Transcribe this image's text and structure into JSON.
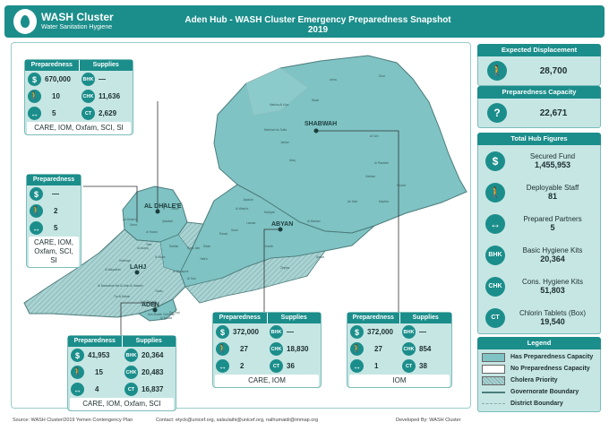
{
  "header": {
    "logo_title": "WASH Cluster",
    "logo_subtitle": "Water Sanitation Hygiene",
    "title": "Aden Hub - WASH Cluster Emergency Preparedness Snapshot 2019"
  },
  "map_labels": {
    "shabwah": "SHABWAH",
    "al_dhale": "AL DHALE'E",
    "abyan": "ABYAN",
    "lahj": "LAHJ",
    "aden": "ADEN"
  },
  "map_districts": [
    "Arma",
    "Dhar",
    "Markha Al Ulya",
    "Nisab",
    "Merkhah As Sufla",
    "Ataq",
    "Jardan",
    "Rudum",
    "Mayfa'a",
    "Habban",
    "Ar Rawdah",
    "As Said",
    "Al Talh",
    "Ahwar",
    "Lawdar",
    "Mudiyah",
    "Al Mahfad",
    "Jayshan",
    "Sarar",
    "Khanfir",
    "Zinjibar",
    "Al Wade'a",
    "Rasad",
    "Sibah",
    "Al Musaymir",
    "Tuban",
    "Al Madaribah Wa Al Arah",
    "Dar Sad",
    "Al Mualla",
    "Ash Shaikh Outhman",
    "Ash Shu'ayb",
    "Al Husha",
    "Qatabah",
    "Juban",
    "Damt",
    "Ad Dhale'e",
    "Al Azariq",
    "Al Hawtah",
    "Tur Al Bahah",
    "Al Maqatirah",
    "Halimayn",
    "Al Milah",
    "Yafa'a",
    "Al Had",
    "Radfan",
    "Habil Jabr",
    "Yahr"
  ],
  "cards": {
    "al_dhalee": {
      "head_preparedness": "Preparedness",
      "head_supplies": "Supplies",
      "displacement": "670,000",
      "staff": "10",
      "partners": "5",
      "bhk": "—",
      "chk": "11,636",
      "ct": "2,629",
      "partners_list": "CARE, IOM, Oxfam, SCI, SI"
    },
    "lahj": {
      "head_preparedness": "Preparedness",
      "displacement": "—",
      "staff": "2",
      "partners": "5",
      "partners_list": "CARE, IOM, Oxfam, SCI, SI"
    },
    "aden": {
      "head_preparedness": "Preparedness",
      "head_supplies": "Supplies",
      "displacement": "41,953",
      "staff": "15",
      "partners": "4",
      "bhk": "20,364",
      "chk": "20,483",
      "ct": "16,837",
      "partners_list": "CARE, IOM, Oxfam, SCI"
    },
    "abyan": {
      "head_preparedness": "Preparedness",
      "head_supplies": "Supplies",
      "displacement": "372,000",
      "staff": "27",
      "partners": "2",
      "bhk": "—",
      "chk": "18,830",
      "ct": "36",
      "partners_list": "CARE, IOM"
    },
    "shabwah": {
      "head_preparedness": "Preparedness",
      "head_supplies": "Supplies",
      "displacement": "372,000",
      "staff": "27",
      "partners": "1",
      "bhk": "—",
      "chk": "854",
      "ct": "38",
      "partners_list": "IOM"
    }
  },
  "icons": {
    "bhk": "BHK",
    "chk": "CHK",
    "ct": "CT",
    "dollar": "$",
    "question": "?"
  },
  "side": {
    "expected_displacement": {
      "title": "Expected Displacement",
      "value": "28,700"
    },
    "preparedness_capacity": {
      "title": "Preparedness Capacity",
      "value": "22,671"
    },
    "total_hub": {
      "title": "Total Hub Figures",
      "items": [
        {
          "label": "Secured Fund",
          "value": "1,455,953"
        },
        {
          "label": "Deployable Staff",
          "value": "81"
        },
        {
          "label": "Prepared Partners",
          "value": "5"
        },
        {
          "label": "Basic Hygiene Kits",
          "value": "20,364"
        },
        {
          "label": "Cons. Hygiene Kits",
          "value": "51,803"
        },
        {
          "label": "Chlorin Tablets (Box)",
          "value": "19,540"
        }
      ]
    },
    "legend": {
      "title": "Legend",
      "items": [
        "Has Preparedness Capacity",
        "No Preparedness Capacity",
        "Cholera Priority",
        "Governorate Boundary",
        "District Boundary"
      ]
    }
  },
  "colors": {
    "accent": "#1b8e8b",
    "capacity": "#7fc3c4",
    "light": "#c6e6e4"
  },
  "footer": {
    "source": "Source: WASH Cluster/2019 Yemen Contengency Plan",
    "contact": "Contact: etyck@unicef.org, salsulaihi@unicef.org, nalhumaidi@immap.org",
    "developed": "Developed By: WASH Cluster"
  }
}
